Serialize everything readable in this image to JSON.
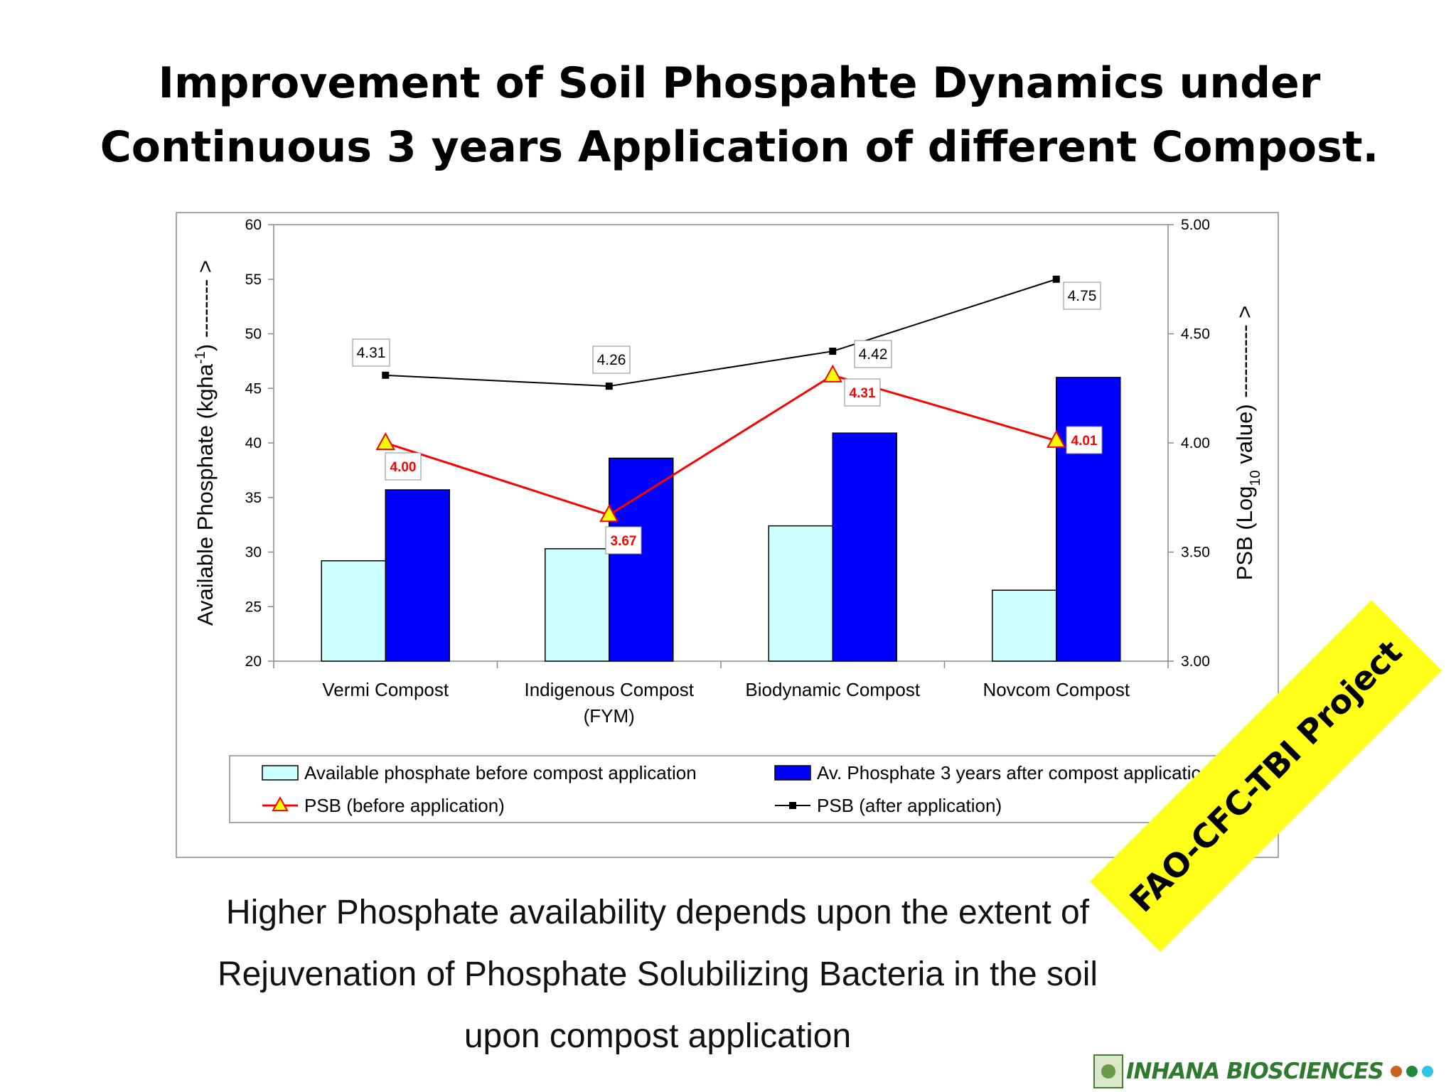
{
  "slide": {
    "title_lines": [
      "Improvement of Soil Phospahte Dynamics under",
      "Continuous 3 years Application of different Compost."
    ],
    "caption_lines": [
      "Higher Phosphate availability depends upon the extent of",
      "Rejuvenation of Phosphate Solubilizing Bacteria in the soil",
      "upon compost application"
    ],
    "banner": "FAO-CFC-TBI Project",
    "logo_text": "INHANA BIOSCIENCES",
    "logo_icon": "inhana-logo-icon",
    "logo_dot_colors": [
      "#c8641e",
      "#1e8a3c",
      "#2ec4e6"
    ]
  },
  "chart_data": {
    "type": "bar",
    "categories": [
      [
        "Vermi Compost"
      ],
      [
        "Indigenous Compost",
        "(FYM)"
      ],
      [
        "Biodynamic Compost"
      ],
      [
        "Novcom Compost"
      ]
    ],
    "y_left": {
      "label_main": "Available Phosphate (kgha",
      "label_sup": "-1",
      "label_tail": ") -------- >",
      "range": [
        20,
        60
      ],
      "ticks": [
        "20",
        "25",
        "30",
        "35",
        "40",
        "45",
        "50",
        "55",
        "60"
      ]
    },
    "y_right": {
      "label_pre": "PSB (Log",
      "label_sub": "10",
      "label_post": " value) ---------- >",
      "range": [
        3.0,
        5.0
      ],
      "ticks": [
        "3.00",
        "3.50",
        "4.00",
        "4.50",
        "5.00"
      ]
    },
    "series": [
      {
        "name": "Available phosphate before compost application",
        "kind": "bar",
        "axis": "left",
        "values": [
          29.2,
          30.3,
          32.4,
          26.5
        ],
        "color": "#ccffff"
      },
      {
        "name": "Av. Phosphate 3 years after compost application",
        "kind": "bar",
        "axis": "left",
        "values": [
          35.7,
          38.6,
          40.9,
          46.0
        ],
        "color": "#0000ff"
      },
      {
        "name": "PSB (before application)",
        "kind": "line",
        "axis": "right",
        "marker": "triangle",
        "values": [
          4.0,
          3.67,
          4.31,
          4.01
        ],
        "labels": [
          "4.00",
          "3.67",
          "4.31",
          "4.01"
        ],
        "color": "#ff0000",
        "marker_fill": "#ffff00"
      },
      {
        "name": "PSB (after application)",
        "kind": "line",
        "axis": "right",
        "marker": "square",
        "values": [
          4.31,
          4.26,
          4.42,
          4.75
        ],
        "labels": [
          "4.31",
          "4.26",
          "4.42",
          "4.75"
        ],
        "color": "#000000"
      }
    ],
    "grid": false,
    "legend": "bottom"
  }
}
